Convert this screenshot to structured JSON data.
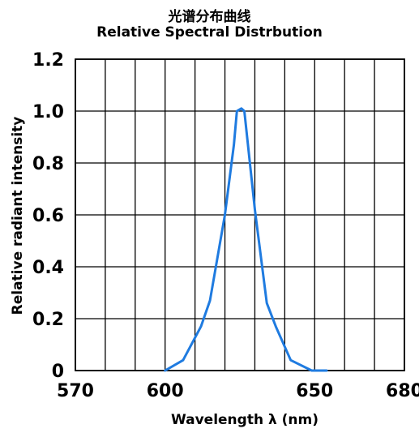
{
  "chart_data": {
    "type": "line",
    "title": "光谱分布曲线",
    "subtitle": "Relative Spectral Distrbution",
    "xlabel": "Wavelength  λ (nm)",
    "ylabel": "Relative radiant intensity",
    "xlim": [
      570,
      680
    ],
    "ylim": [
      0,
      1.2
    ],
    "x_ticks": [
      "570",
      "600",
      "650",
      "680"
    ],
    "x_tick_values": [
      570,
      600,
      650,
      680
    ],
    "y_ticks": [
      "0",
      "0.2",
      "0.4",
      "0.6",
      "0.8",
      "1.0",
      "1.2"
    ],
    "y_tick_values": [
      0,
      0.2,
      0.4,
      0.6,
      0.8,
      1.0,
      1.2
    ],
    "x_grid_step": 10,
    "y_grid_step": 0.2,
    "grid": true,
    "series": [
      {
        "color": "#1f7be0",
        "x": [
          600,
          606,
          612,
          615,
          620,
          623,
          624,
          625.5,
          626.5,
          630,
          634,
          637,
          642,
          649,
          654
        ],
        "y": [
          0.0,
          0.04,
          0.17,
          0.27,
          0.6,
          0.87,
          1.0,
          1.01,
          1.0,
          0.62,
          0.26,
          0.17,
          0.04,
          0.0,
          0.0
        ]
      }
    ],
    "colors": {
      "grid": "#000000",
      "line": "#1f7be0"
    }
  }
}
